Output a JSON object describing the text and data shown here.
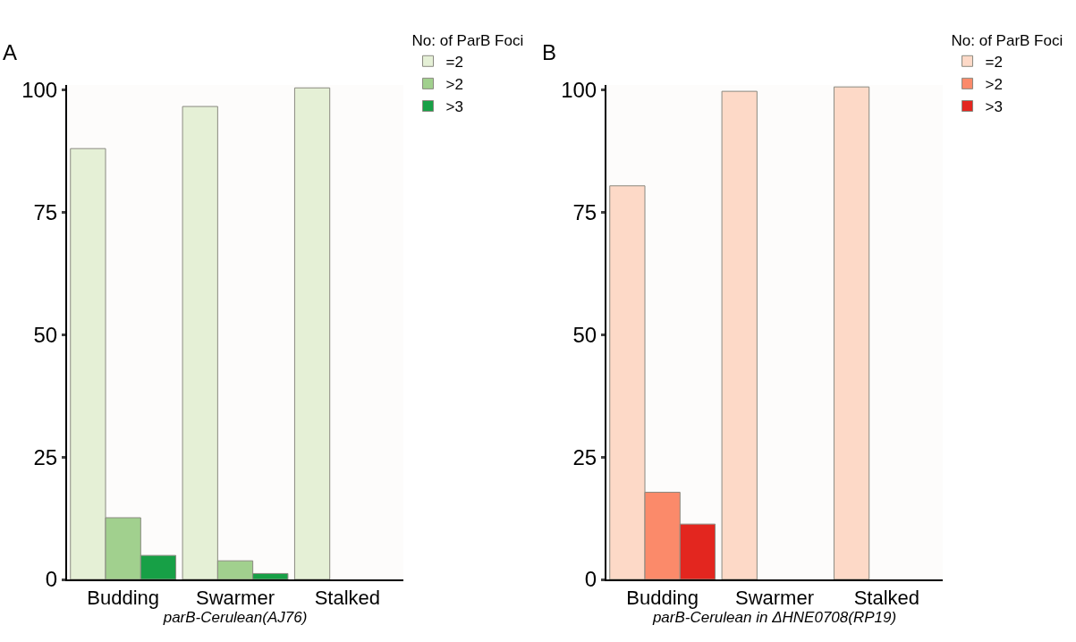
{
  "chart_data": [
    {
      "type": "bar",
      "title": "A",
      "xlabel": "parB-Cerulean(AJ76)",
      "legend_title": "No: of ParB Foci",
      "legend": "top right",
      "categories": [
        "Budding",
        "Swarmer",
        "Stalked"
      ],
      "ylim": [
        0,
        101
      ],
      "yticks": [
        0,
        25,
        50,
        75,
        100
      ],
      "grid": false,
      "series": [
        {
          "name": "=2",
          "color": "#e5f0d6",
          "values": [
            88,
            96.6,
            100.4
          ]
        },
        {
          "name": ">2",
          "color": "#a1d08e",
          "values": [
            12.6,
            3.8,
            null
          ]
        },
        {
          "name": ">3",
          "color": "#17a046",
          "values": [
            4.9,
            1.2,
            null
          ]
        }
      ]
    },
    {
      "type": "bar",
      "title": "B",
      "xlabel": "parB-Cerulean in ΔHNE0708(RP19)",
      "legend_title": "No: of ParB Foci",
      "legend": "top right",
      "categories": [
        "Budding",
        "Swarmer",
        "Stalked"
      ],
      "ylim": [
        0,
        101
      ],
      "yticks": [
        0,
        25,
        50,
        75,
        100
      ],
      "grid": false,
      "series": [
        {
          "name": "=2",
          "color": "#fdd9c7",
          "values": [
            80.4,
            99.7,
            100.6
          ]
        },
        {
          "name": ">2",
          "color": "#fb8a6a",
          "values": [
            17.8,
            null,
            null
          ]
        },
        {
          "name": ">3",
          "color": "#e3261f",
          "values": [
            11.3,
            null,
            null
          ]
        }
      ]
    }
  ]
}
